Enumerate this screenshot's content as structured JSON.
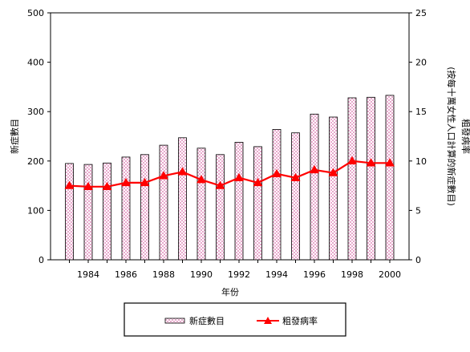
{
  "chart_data": {
    "type": "bar",
    "title": "",
    "xlabel": "年份",
    "ylabel_left": "新症數目",
    "ylabel_right": "粗發病率\n(按每十萬女性人口計算的新症數目)",
    "ylim_left": [
      0,
      500
    ],
    "ylim_right": [
      0,
      25
    ],
    "yticks_left": [
      "0",
      "100",
      "200",
      "300",
      "400",
      "500"
    ],
    "yticks_right": [
      "0",
      "5",
      "10",
      "15",
      "20",
      "25"
    ],
    "categories": [
      "1983",
      "1984",
      "1985",
      "1986",
      "1987",
      "1988",
      "1989",
      "1990",
      "1991",
      "1992",
      "1993",
      "1994",
      "1995",
      "1996",
      "1997",
      "1998",
      "1999",
      "2000"
    ],
    "xtick_labels": [
      "",
      "1984",
      "",
      "1986",
      "",
      "1988",
      "",
      "1990",
      "",
      "1992",
      "",
      "1994",
      "",
      "1996",
      "",
      "1998",
      "",
      "2000"
    ],
    "grid": false,
    "legend_position": "bottom",
    "series": [
      {
        "name": "新症數目",
        "type": "bar",
        "axis": "left",
        "color": "#f2c6e0",
        "values": [
          195,
          193,
          196,
          208,
          213,
          232,
          247,
          226,
          213,
          238,
          229,
          264,
          257,
          295,
          289,
          328,
          329,
          333
        ]
      },
      {
        "name": "粗發病率",
        "type": "line",
        "axis": "right",
        "color": "#ff0000",
        "values": [
          7.5,
          7.4,
          7.4,
          7.8,
          7.8,
          8.5,
          8.9,
          8.1,
          7.5,
          8.3,
          7.8,
          8.7,
          8.3,
          9.1,
          8.8,
          10.0,
          9.8,
          9.8
        ]
      }
    ]
  }
}
